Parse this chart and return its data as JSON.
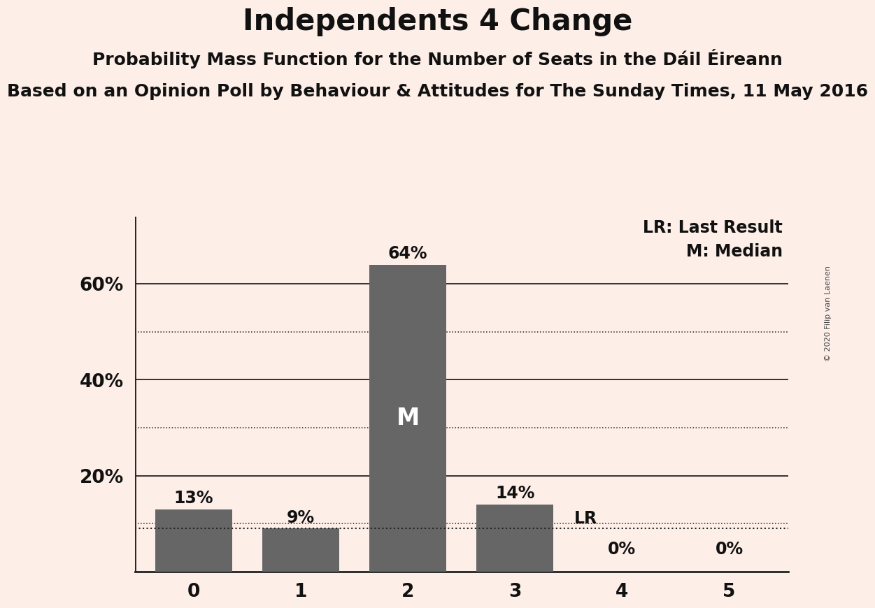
{
  "title": "Independents 4 Change",
  "subtitle1": "Probability Mass Function for the Number of Seats in the Dáil Éireann",
  "subtitle2": "Based on an Opinion Poll by Behaviour & Attitudes for The Sunday Times, 11 May 2016",
  "copyright": "© 2020 Filip van Laenen",
  "categories": [
    0,
    1,
    2,
    3,
    4,
    5
  ],
  "values": [
    0.13,
    0.09,
    0.64,
    0.14,
    0.0,
    0.0
  ],
  "labels": [
    "13%",
    "9%",
    "64%",
    "14%",
    "0%",
    "0%"
  ],
  "bar_color": "#666666",
  "background_color": "#FDEEE8",
  "median_bar": 2,
  "median_label": "M",
  "lr_value": 0.09,
  "lr_label": "LR",
  "yticks": [
    0.0,
    0.2,
    0.4,
    0.6
  ],
  "ytick_labels": [
    "",
    "20%",
    "40%",
    "60%"
  ],
  "grid_dotted": [
    0.1,
    0.3,
    0.5
  ],
  "grid_solid": [
    0.2,
    0.4,
    0.6
  ],
  "legend_lr": "LR: Last Result",
  "legend_m": "M: Median",
  "title_fontsize": 30,
  "subtitle1_fontsize": 18,
  "subtitle2_fontsize": 18,
  "label_fontsize": 17,
  "tick_fontsize": 19,
  "legend_fontsize": 17,
  "median_fontsize": 24,
  "bar_width": 0.72,
  "ylim": [
    0,
    0.74
  ],
  "xlim": [
    -0.55,
    5.55
  ]
}
